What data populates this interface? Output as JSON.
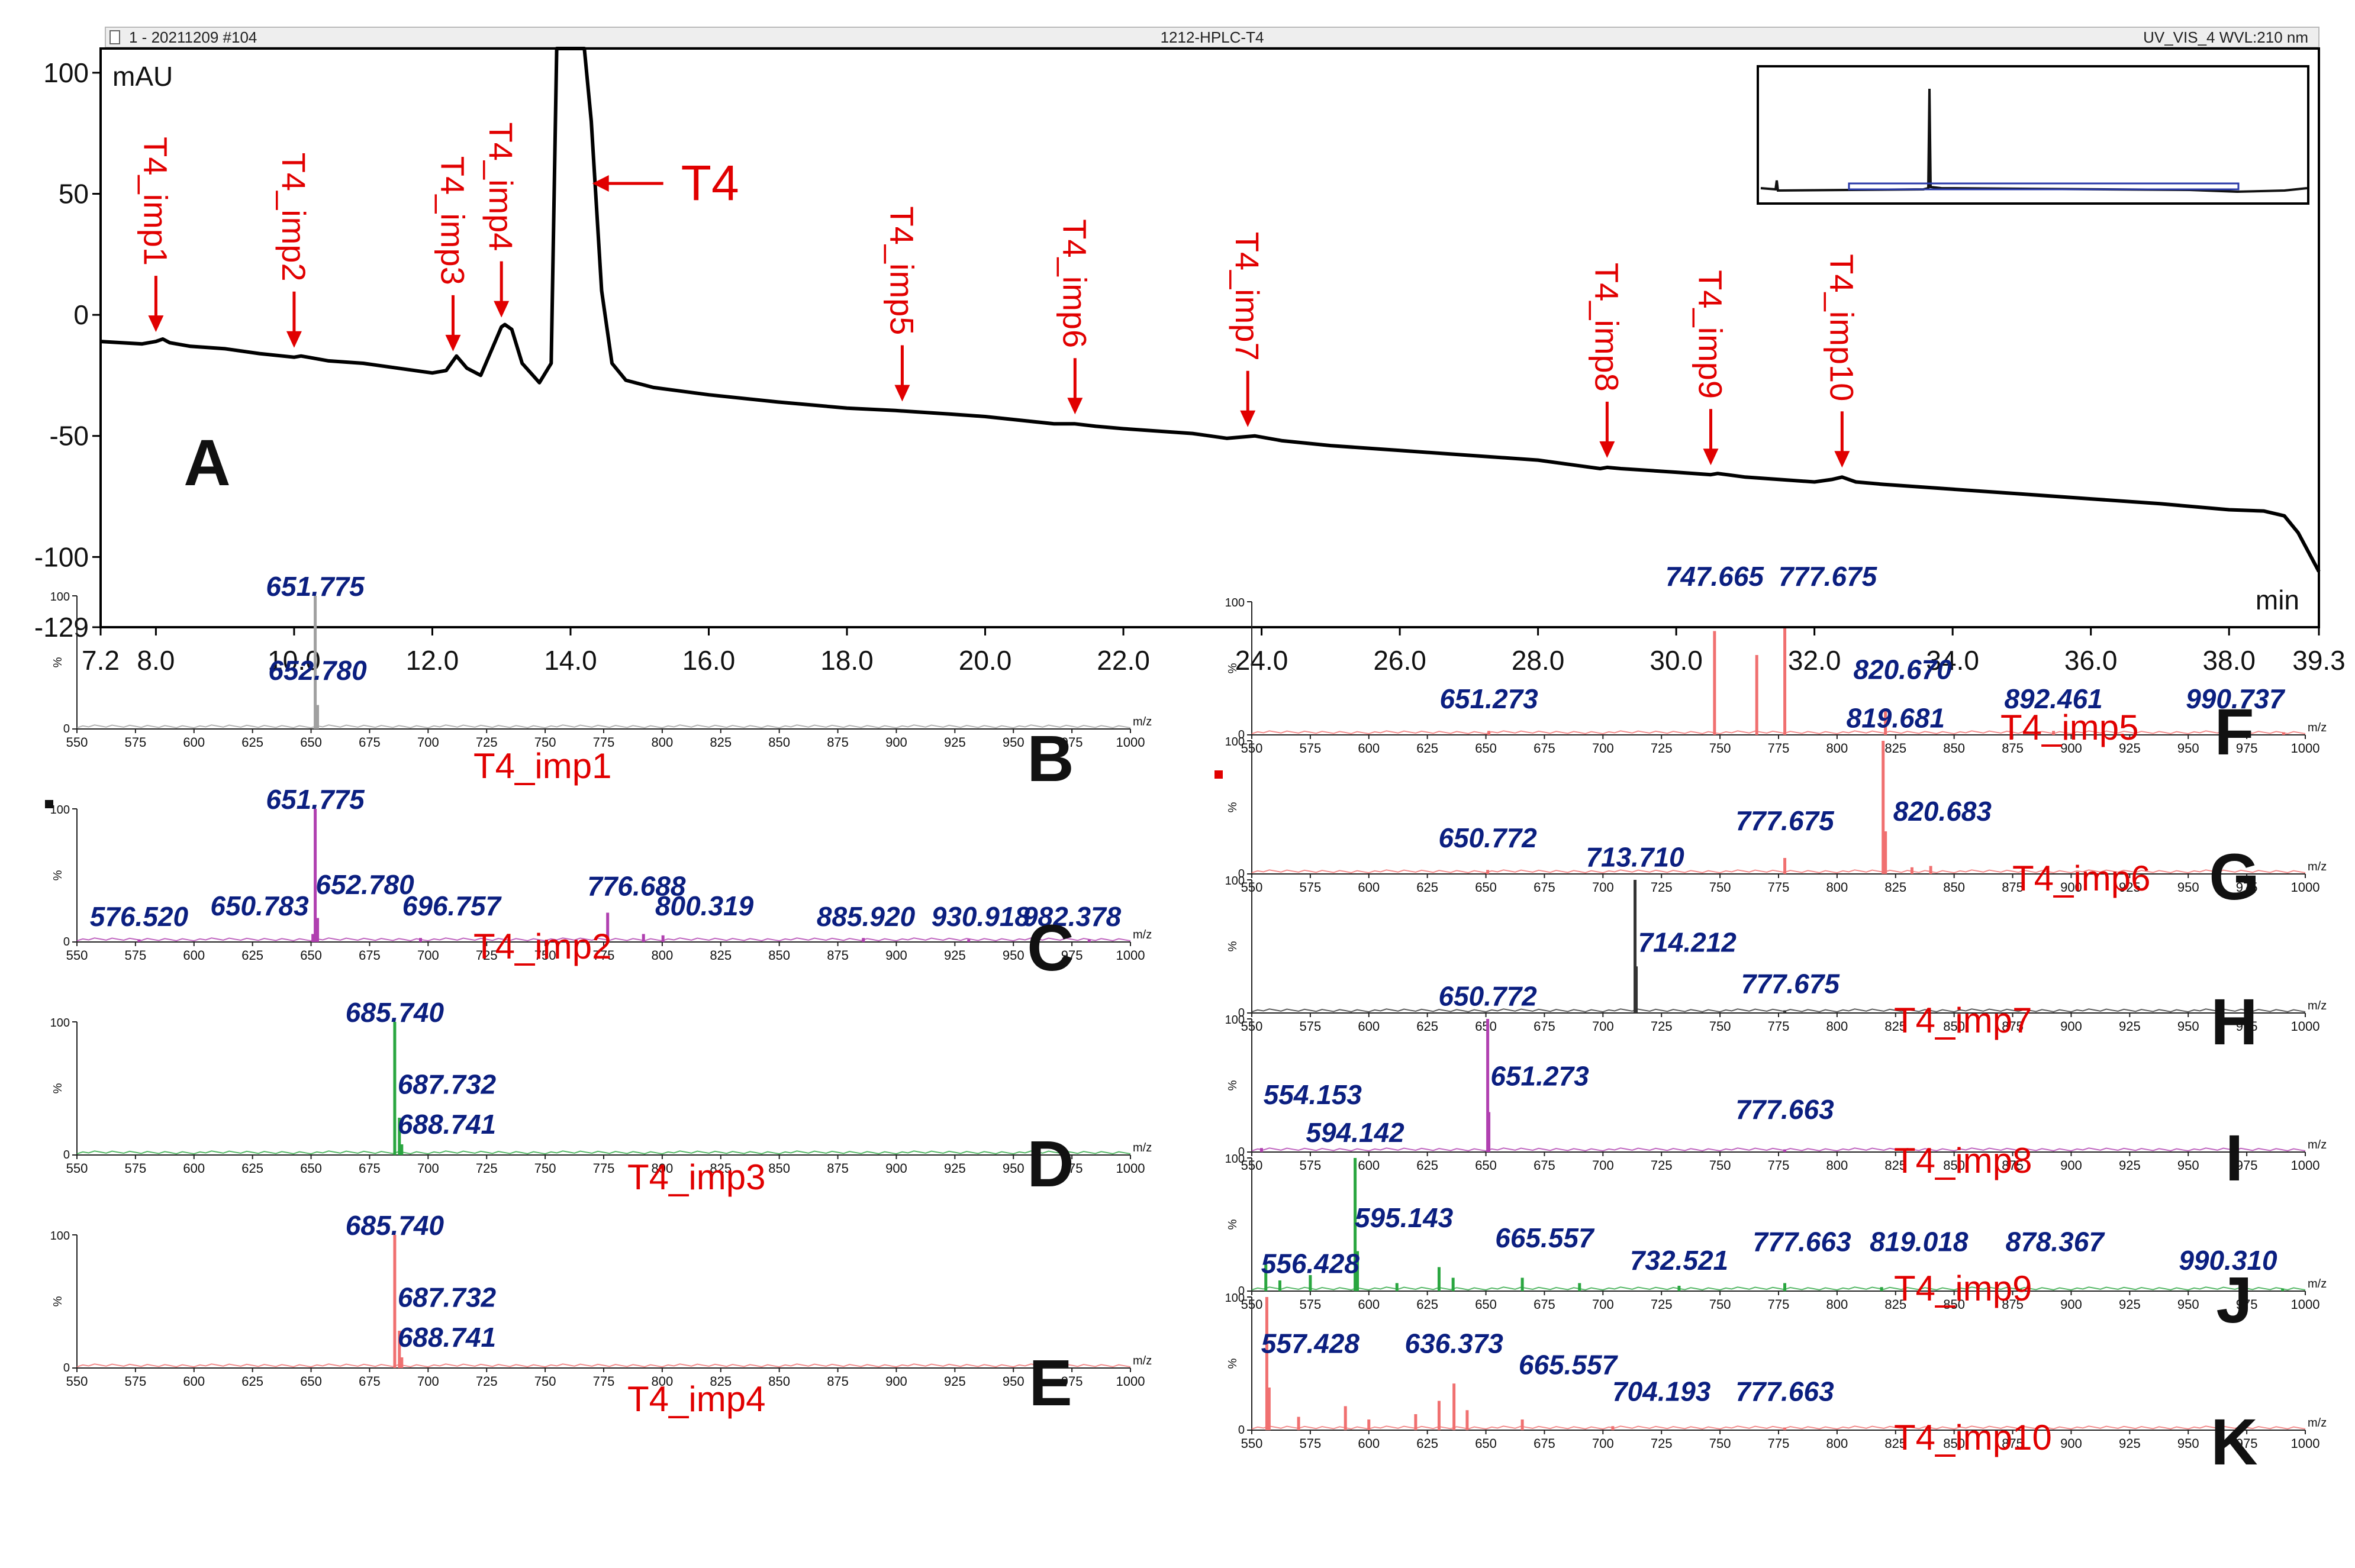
{
  "header": {
    "left": "1 - 20211209 #104",
    "center": "1212-HPLC-T4",
    "right": "UV_VIS_4  WVL:210 nm"
  },
  "chromatogram": {
    "panel_label": "A",
    "y_unit": "mAU",
    "x_unit": "min",
    "main_peak_label": "T4",
    "colors": {
      "trace": "#000000",
      "annotation": "#e10000",
      "inset_window": "#2a3aa8"
    }
  },
  "mass_spectra": {
    "x_unit": "m/z",
    "y_unit": "%",
    "colors": {
      "peak_label": "#0b1f80",
      "title": "#e10000"
    }
  },
  "chart_data": [
    {
      "id": "A",
      "type": "line",
      "title": "1212-HPLC-T4",
      "xlabel": "min",
      "ylabel": "mAU",
      "xlim": [
        7.2,
        39.3
      ],
      "ylim": [
        -129,
        110
      ],
      "xticks": [
        "7.2",
        "8.0",
        "10.0",
        "12.0",
        "14.0",
        "16.0",
        "18.0",
        "20.0",
        "22.0",
        "24.0",
        "26.0",
        "28.0",
        "30.0",
        "32.0",
        "34.0",
        "36.0",
        "38.0",
        "39.3"
      ],
      "yticks": [
        "100",
        "50",
        "0",
        "-50",
        "-100",
        "-129"
      ],
      "series": [
        {
          "name": "UV_VIS_4",
          "x": [
            7.2,
            7.8,
            8.0,
            8.1,
            8.2,
            8.5,
            9.0,
            9.5,
            10.0,
            10.1,
            10.2,
            10.5,
            11.0,
            11.5,
            12.0,
            12.2,
            12.35,
            12.5,
            12.7,
            12.85,
            13.0,
            13.05,
            13.15,
            13.3,
            13.55,
            13.72,
            13.8,
            13.88,
            14.05,
            14.2,
            14.3,
            14.45,
            14.6,
            14.8,
            15.2,
            16.0,
            17.0,
            18.0,
            18.7,
            19.5,
            20.0,
            21.0,
            21.3,
            21.6,
            22.0,
            23.0,
            23.5,
            23.9,
            24.3,
            25.0,
            26.0,
            27.0,
            28.0,
            28.9,
            29.0,
            29.2,
            30.0,
            30.5,
            30.6,
            31.0,
            32.0,
            32.25,
            32.4,
            32.6,
            33.0,
            34.0,
            35.0,
            36.0,
            37.0,
            38.0,
            38.5,
            38.8,
            39.0,
            39.3
          ],
          "y": [
            -11,
            -12,
            -11,
            -10,
            -11.5,
            -13,
            -14,
            -16,
            -17.5,
            -17,
            -17.5,
            -19,
            -20,
            -22,
            -24,
            -23,
            -17,
            -22,
            -25,
            -15,
            -5,
            -4,
            -6,
            -20,
            -28,
            -20,
            110,
            110,
            110,
            110,
            80,
            10,
            -20,
            -27,
            -30,
            -33,
            -36,
            -38.5,
            -39.5,
            -41,
            -42,
            -45,
            -45,
            -46,
            -47,
            -49,
            -51,
            -50,
            -52,
            -54,
            -56,
            -58,
            -60,
            -63.5,
            -63,
            -63.5,
            -65,
            -66,
            -65.5,
            -67,
            -69,
            -68,
            -67,
            -69,
            -70,
            -72,
            -74,
            -76,
            -78,
            -80.5,
            -81,
            -83,
            -90,
            -106
          ]
        }
      ],
      "annotations": [
        {
          "label": "T4_imp1",
          "x": 8.0
        },
        {
          "label": "T4_imp2",
          "x": 10.0
        },
        {
          "label": "T4_imp3",
          "x": 12.3
        },
        {
          "label": "T4_imp4",
          "x": 13.0
        },
        {
          "label": "T4",
          "x": 14.4
        },
        {
          "label": "T4_imp5",
          "x": 18.8
        },
        {
          "label": "T4_imp6",
          "x": 21.3
        },
        {
          "label": "T4_imp7",
          "x": 23.8
        },
        {
          "label": "T4_imp8",
          "x": 29.0
        },
        {
          "label": "T4_imp9",
          "x": 30.5
        },
        {
          "label": "T4_imp10",
          "x": 32.4
        }
      ],
      "inset": "full-run overview (top-right)"
    },
    {
      "id": "B",
      "type": "bar",
      "title": "T4_imp1",
      "color": "#a0a0a0",
      "xlim": [
        550,
        1000
      ],
      "ylim": [
        0,
        100
      ],
      "xlabel": "m/z",
      "ylabel": "%",
      "peaks": [
        [
          651.775,
          100
        ],
        [
          652.78,
          18
        ]
      ],
      "labels": [
        {
          "text": "651.775",
          "mz": 651.775,
          "i": 100
        },
        {
          "text": "652.780",
          "mz": 652.78,
          "i": 37
        }
      ]
    },
    {
      "id": "C",
      "type": "bar",
      "title": "T4_imp2",
      "color": "#b040b0",
      "xlim": [
        550,
        1000
      ],
      "ylim": [
        0,
        100
      ],
      "xlabel": "m/z",
      "ylabel": "%",
      "peaks": [
        [
          576.52,
          2
        ],
        [
          650.783,
          6
        ],
        [
          651.775,
          100
        ],
        [
          652.78,
          18
        ],
        [
          696.757,
          3
        ],
        [
          776.688,
          22
        ],
        [
          792,
          6
        ],
        [
          800.319,
          5
        ],
        [
          885.92,
          3
        ],
        [
          930.918,
          2
        ],
        [
          982.378,
          2
        ]
      ],
      "labels": [
        {
          "text": "576.520",
          "mz": 576.52,
          "i": 12
        },
        {
          "text": "650.783",
          "mz": 628,
          "i": 20
        },
        {
          "text": "651.775",
          "mz": 651.775,
          "i": 100
        },
        {
          "text": "652.780",
          "mz": 673,
          "i": 36
        },
        {
          "text": "696.757",
          "mz": 710,
          "i": 20
        },
        {
          "text": "776.688",
          "mz": 789,
          "i": 35
        },
        {
          "text": "800.319",
          "mz": 818,
          "i": 20
        },
        {
          "text": "885.920",
          "mz": 887,
          "i": 12
        },
        {
          "text": "930.918",
          "mz": 936,
          "i": 12
        },
        {
          "text": "982.378",
          "mz": 975,
          "i": 12
        }
      ]
    },
    {
      "id": "D",
      "type": "bar",
      "title": "T4_imp3",
      "color": "#2aa640",
      "xlim": [
        550,
        1000
      ],
      "ylim": [
        0,
        100
      ],
      "xlabel": "m/z",
      "ylabel": "%",
      "peaks": [
        [
          685.74,
          100
        ],
        [
          687.732,
          28
        ],
        [
          688.741,
          8
        ]
      ],
      "labels": [
        {
          "text": "685.740",
          "mz": 685.74,
          "i": 100
        },
        {
          "text": "687.732",
          "mz": 708,
          "i": 46
        },
        {
          "text": "688.741",
          "mz": 708,
          "i": 16
        }
      ]
    },
    {
      "id": "E",
      "type": "bar",
      "title": "T4_imp4",
      "color": "#f07070",
      "xlim": [
        550,
        1000
      ],
      "ylim": [
        0,
        100
      ],
      "xlabel": "m/z",
      "ylabel": "%",
      "peaks": [
        [
          685.74,
          100
        ],
        [
          687.732,
          28
        ],
        [
          688.741,
          8
        ]
      ],
      "labels": [
        {
          "text": "685.740",
          "mz": 685.74,
          "i": 100
        },
        {
          "text": "687.732",
          "mz": 708,
          "i": 46
        },
        {
          "text": "688.741",
          "mz": 708,
          "i": 16
        }
      ]
    },
    {
      "id": "F",
      "type": "bar",
      "title": "T4_imp5",
      "color": "#f07070",
      "xlim": [
        550,
        1000
      ],
      "ylim": [
        0,
        100
      ],
      "xlabel": "m/z",
      "ylabel": "%",
      "peaks": [
        [
          651.273,
          3
        ],
        [
          747.665,
          78
        ],
        [
          765.7,
          60
        ],
        [
          777.675,
          80
        ],
        [
          820.67,
          20
        ],
        [
          892.461,
          3
        ],
        [
          990.737,
          2
        ]
      ],
      "labels": [
        {
          "text": "651.273",
          "mz": 651.273,
          "i": 20
        },
        {
          "text": "747.665",
          "mz": 747.665,
          "i": 112
        },
        {
          "text": "777.675",
          "mz": 796,
          "i": 112
        },
        {
          "text": "820.670",
          "mz": 828,
          "i": 42
        },
        {
          "text": "892.461",
          "mz": 892.461,
          "i": 20
        },
        {
          "text": "990.737",
          "mz": 970,
          "i": 20
        }
      ]
    },
    {
      "id": "G",
      "type": "bar",
      "title": "T4_imp6",
      "color": "#f07070",
      "xlim": [
        550,
        1000
      ],
      "ylim": [
        0,
        100
      ],
      "xlabel": "m/z",
      "ylabel": "%",
      "peaks": [
        [
          650.772,
          3
        ],
        [
          777.675,
          12
        ],
        [
          819.681,
          100
        ],
        [
          820.683,
          32
        ],
        [
          832,
          5
        ],
        [
          840,
          6
        ]
      ],
      "labels": [
        {
          "text": "650.772",
          "mz": 650.772,
          "i": 20
        },
        {
          "text": "777.675",
          "mz": 777.675,
          "i": 33
        },
        {
          "text": "819.681",
          "mz": 825,
          "i": 110
        },
        {
          "text": "820.683",
          "mz": 845,
          "i": 40
        }
      ]
    },
    {
      "id": "H",
      "type": "bar",
      "title": "T4_imp7",
      "color": "#333333",
      "xlim": [
        550,
        1000
      ],
      "ylim": [
        0,
        100
      ],
      "xlabel": "m/z",
      "ylabel": "%",
      "peaks": [
        [
          713.71,
          100
        ],
        [
          714.212,
          35
        ],
        [
          777.675,
          2
        ]
      ],
      "labels": [
        {
          "text": "713.710",
          "mz": 713.71,
          "i": 110
        },
        {
          "text": "714.212",
          "mz": 736,
          "i": 46
        },
        {
          "text": "777.675",
          "mz": 780,
          "i": 15
        }
      ]
    },
    {
      "id": "I",
      "type": "bar",
      "title": "T4_imp8",
      "color": "#b040b0",
      "xlim": [
        550,
        1000
      ],
      "ylim": [
        0,
        100
      ],
      "xlabel": "m/z",
      "ylabel": "%",
      "peaks": [
        [
          554.153,
          3
        ],
        [
          650.772,
          100
        ],
        [
          651.273,
          30
        ],
        [
          777.663,
          2
        ]
      ],
      "labels": [
        {
          "text": "554.153",
          "mz": 576,
          "i": 36
        },
        {
          "text": "650.772",
          "mz": 650.772,
          "i": 110
        },
        {
          "text": "651.273",
          "mz": 673,
          "i": 50
        },
        {
          "text": "777.663",
          "mz": 777.663,
          "i": 25
        }
      ]
    },
    {
      "id": "J",
      "type": "bar",
      "title": "T4_imp9",
      "color": "#2aa640",
      "xlim": [
        550,
        1000
      ],
      "ylim": [
        0,
        100
      ],
      "xlabel": "m/z",
      "ylabel": "%",
      "peaks": [
        [
          556,
          20
        ],
        [
          562,
          8
        ],
        [
          575,
          12
        ],
        [
          594.142,
          100
        ],
        [
          595.143,
          30
        ],
        [
          612,
          6
        ],
        [
          630,
          18
        ],
        [
          636,
          10
        ],
        [
          665.557,
          10
        ],
        [
          690,
          6
        ],
        [
          732.521,
          4
        ],
        [
          777.663,
          6
        ],
        [
          819.018,
          3
        ],
        [
          878.367,
          2
        ],
        [
          990.31,
          2
        ]
      ],
      "labels": [
        {
          "text": "594.142",
          "mz": 594.142,
          "i": 112
        },
        {
          "text": "595.143",
          "mz": 615,
          "i": 48
        },
        {
          "text": "665.557",
          "mz": 675,
          "i": 33
        },
        {
          "text": "732.521",
          "mz": 732.521,
          "i": 16
        },
        {
          "text": "777.663",
          "mz": 785,
          "i": 30
        },
        {
          "text": "819.018",
          "mz": 835,
          "i": 30
        },
        {
          "text": "878.367",
          "mz": 893,
          "i": 30
        },
        {
          "text": "990.310",
          "mz": 967,
          "i": 16
        }
      ]
    },
    {
      "id": "K",
      "type": "bar",
      "title": "T4_imp10",
      "color": "#f07070",
      "xlim": [
        550,
        1000
      ],
      "ylim": [
        0,
        100
      ],
      "xlabel": "m/z",
      "ylabel": "%",
      "peaks": [
        [
          556.428,
          100
        ],
        [
          557.428,
          32
        ],
        [
          570,
          10
        ],
        [
          590,
          18
        ],
        [
          600,
          8
        ],
        [
          620,
          12
        ],
        [
          630,
          22
        ],
        [
          636.373,
          35
        ],
        [
          642,
          15
        ],
        [
          665.557,
          8
        ],
        [
          704.193,
          3
        ],
        [
          777.663,
          2
        ]
      ],
      "labels": [
        {
          "text": "556.428",
          "mz": 575,
          "i": 118
        },
        {
          "text": "557.428",
          "mz": 575,
          "i": 58
        },
        {
          "text": "636.373",
          "mz": 636.373,
          "i": 58
        },
        {
          "text": "665.557",
          "mz": 685,
          "i": 42
        },
        {
          "text": "704.193",
          "mz": 725,
          "i": 22
        },
        {
          "text": "777.663",
          "mz": 777.663,
          "i": 22
        }
      ]
    }
  ]
}
